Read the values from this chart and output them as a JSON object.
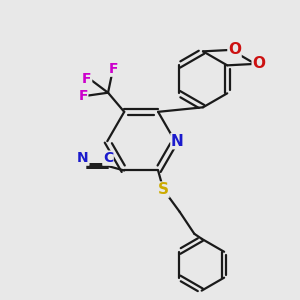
{
  "bg_color": "#e8e8e8",
  "bond_color": "#1a1a1a",
  "bond_width": 1.6,
  "colors": {
    "N": "#1a1acc",
    "O": "#cc1111",
    "S": "#ccaa00",
    "F": "#cc00cc",
    "C": "#1a1acc"
  },
  "figsize": [
    3.0,
    3.0
  ],
  "dpi": 100
}
